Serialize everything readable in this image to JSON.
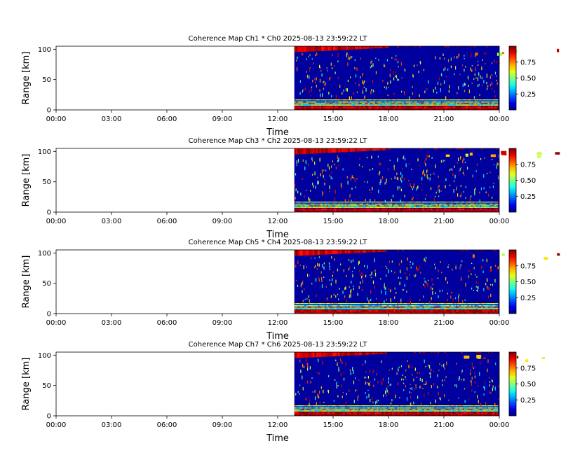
{
  "figure": {
    "colormap": "jet",
    "colorbar_ticks": [
      "0.25",
      "0.50",
      "0.75"
    ],
    "colors": {
      "low": "#00007f",
      "high": "#7f0000",
      "axes": "#000000",
      "background": "#ffffff"
    }
  },
  "chart_data": [
    {
      "type": "heatmap",
      "title": "Coherence Map Ch1 * Ch0 2025-08-13 23:59:22 LT",
      "xlabel": "Time",
      "ylabel": "Range [km]",
      "x_ticks": [
        "00:00",
        "03:00",
        "06:00",
        "09:00",
        "12:00",
        "15:00",
        "18:00",
        "21:00",
        "00:00"
      ],
      "y_ticks": [
        "0",
        "50",
        "100"
      ],
      "xlim_hours": [
        0,
        24
      ],
      "ylim_km": [
        0,
        105
      ],
      "data_start_hour": 12.9,
      "data_end_hour": 24,
      "value_range": [
        0,
        1
      ],
      "colorbar_ticks": [
        0.25,
        0.5,
        0.75
      ]
    },
    {
      "type": "heatmap",
      "title": "Coherence Map Ch3 * Ch2 2025-08-13 23:59:22 LT",
      "xlabel": "Time",
      "ylabel": "Range [km]",
      "x_ticks": [
        "00:00",
        "03:00",
        "06:00",
        "09:00",
        "12:00",
        "15:00",
        "18:00",
        "21:00",
        "00:00"
      ],
      "y_ticks": [
        "0",
        "50",
        "100"
      ],
      "xlim_hours": [
        0,
        24
      ],
      "ylim_km": [
        0,
        105
      ],
      "data_start_hour": 12.9,
      "data_end_hour": 24,
      "value_range": [
        0,
        1
      ],
      "colorbar_ticks": [
        0.25,
        0.5,
        0.75
      ]
    },
    {
      "type": "heatmap",
      "title": "Coherence Map Ch5 * Ch4 2025-08-13 23:59:22 LT",
      "xlabel": "Time",
      "ylabel": "Range [km]",
      "x_ticks": [
        "00:00",
        "03:00",
        "06:00",
        "09:00",
        "12:00",
        "15:00",
        "18:00",
        "21:00",
        "00:00"
      ],
      "y_ticks": [
        "0",
        "50",
        "100"
      ],
      "xlim_hours": [
        0,
        24
      ],
      "ylim_km": [
        0,
        105
      ],
      "data_start_hour": 12.9,
      "data_end_hour": 24,
      "value_range": [
        0,
        1
      ],
      "colorbar_ticks": [
        0.25,
        0.5,
        0.75
      ]
    },
    {
      "type": "heatmap",
      "title": "Coherence Map Ch7 * Ch6 2025-08-13 23:59:22 LT",
      "xlabel": "Time",
      "ylabel": "Range [km]",
      "x_ticks": [
        "00:00",
        "03:00",
        "06:00",
        "09:00",
        "12:00",
        "15:00",
        "18:00",
        "21:00",
        "00:00"
      ],
      "y_ticks": [
        "0",
        "50",
        "100"
      ],
      "xlim_hours": [
        0,
        24
      ],
      "ylim_km": [
        0,
        105
      ],
      "data_start_hour": 12.9,
      "data_end_hour": 24,
      "value_range": [
        0,
        1
      ],
      "colorbar_ticks": [
        0.25,
        0.5,
        0.75
      ]
    }
  ]
}
